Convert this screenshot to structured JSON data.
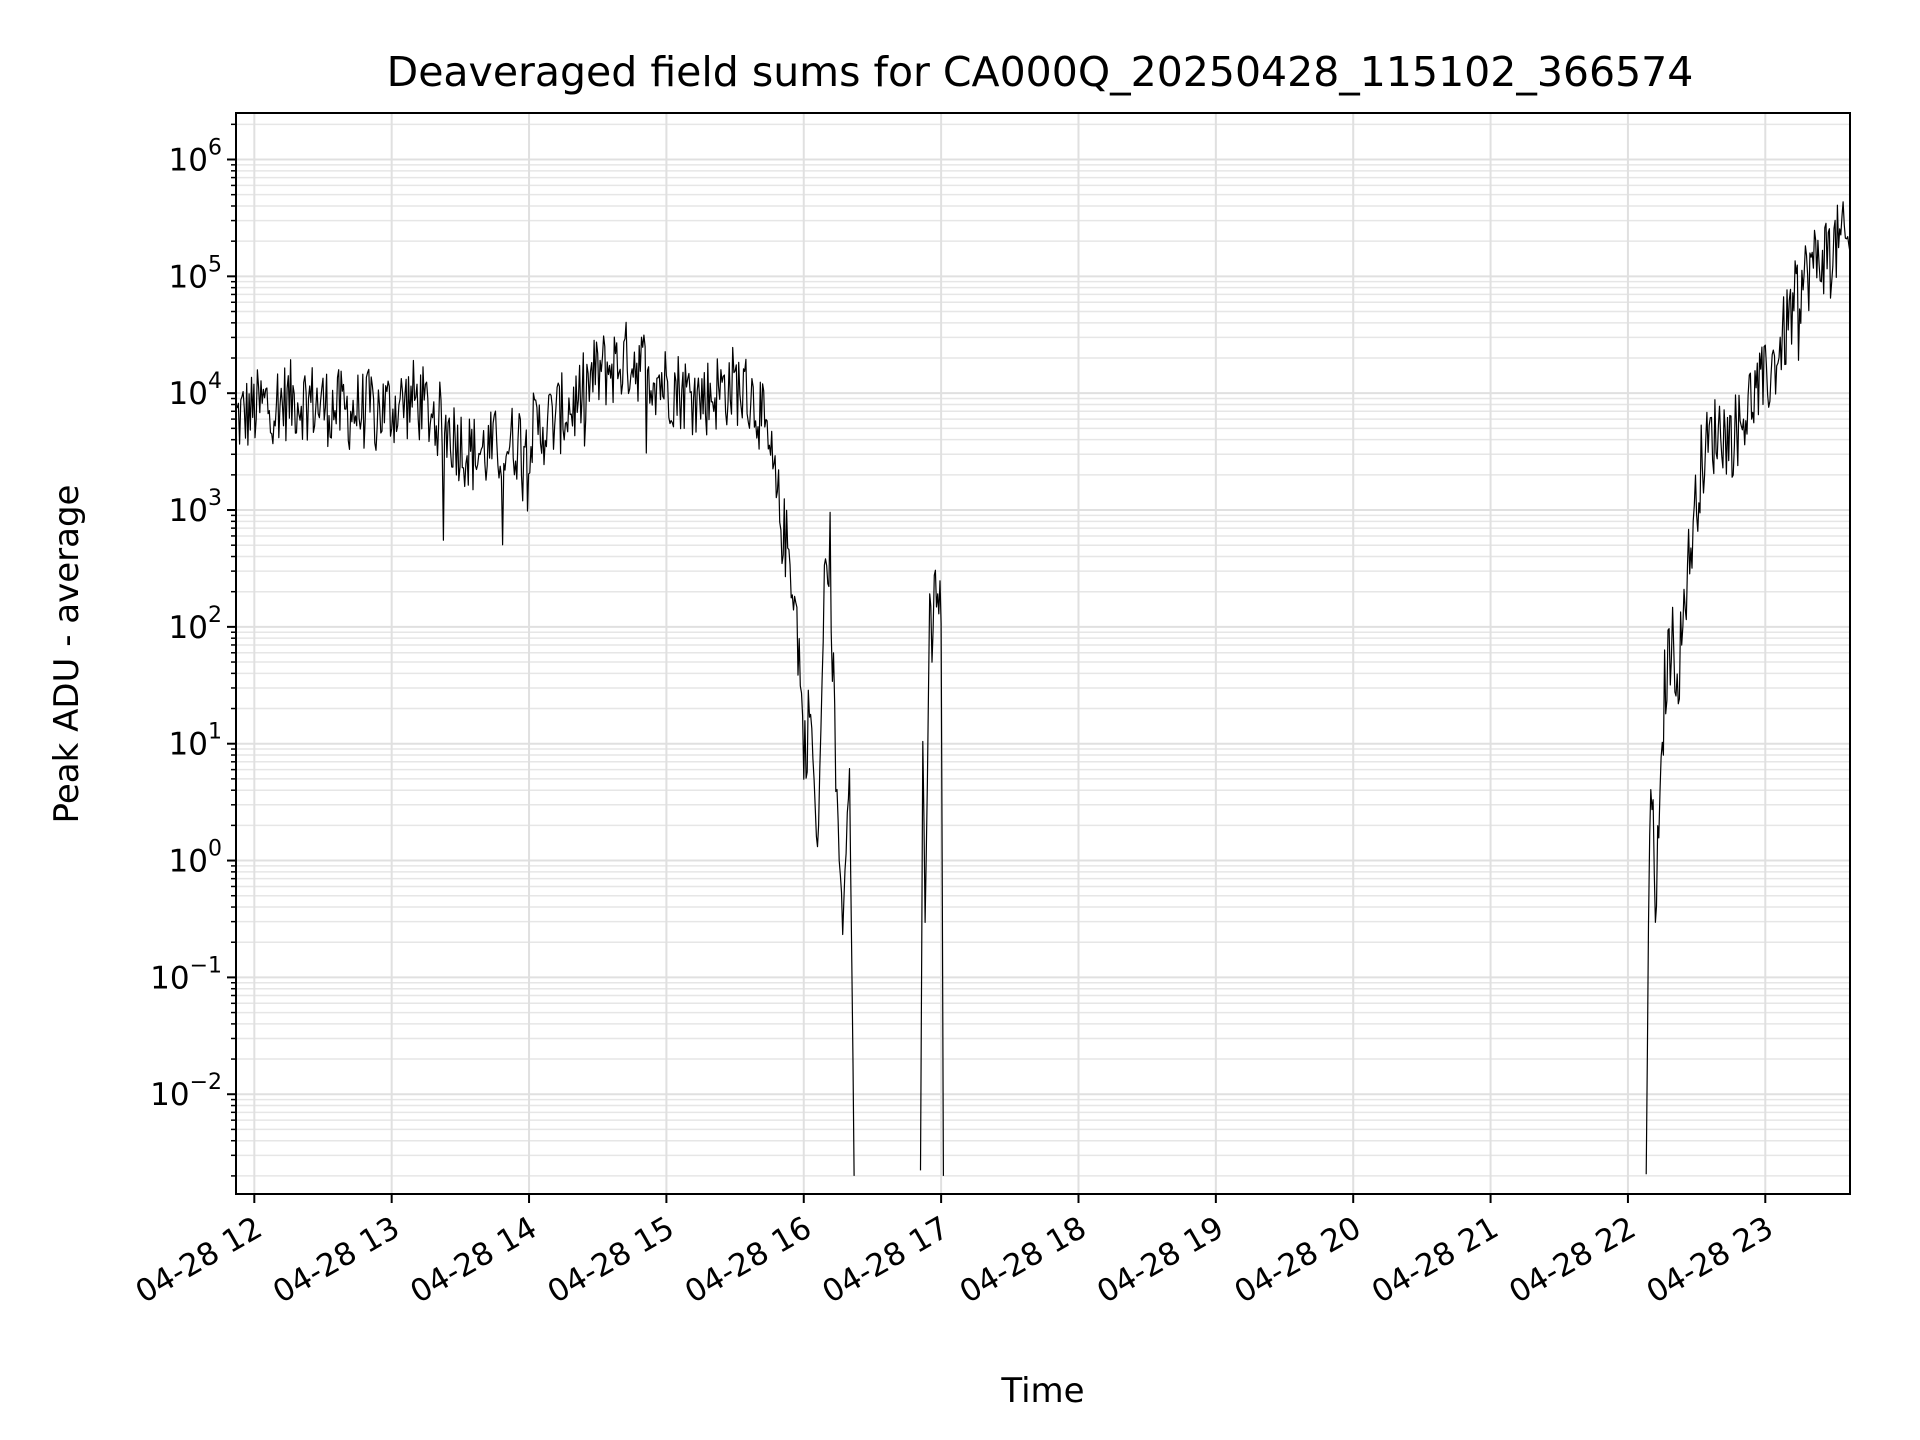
{
  "chart_data": {
    "type": "line",
    "title": "Deaveraged field sums for CA000Q_20250428_115102_366574",
    "xlabel": "Time",
    "ylabel": "Peak ADU - average",
    "yscale": "log",
    "grid": true,
    "xlim": [
      "2025-04-28 11:52",
      "2025-04-28 23:37"
    ],
    "ylim": [
      0.0014,
      2500000.0
    ],
    "x_ticks": [
      "04-28 12",
      "04-28 13",
      "04-28 14",
      "04-28 15",
      "04-28 16",
      "04-28 17",
      "04-28 18",
      "04-28 19",
      "04-28 20",
      "04-28 21",
      "04-28 22",
      "04-28 23"
    ],
    "y_ticks": [
      {
        "value": 0.01,
        "base": "10",
        "exp": "−2"
      },
      {
        "value": 0.1,
        "base": "10",
        "exp": "−1"
      },
      {
        "value": 1,
        "base": "10",
        "exp": "0"
      },
      {
        "value": 10,
        "base": "10",
        "exp": "1"
      },
      {
        "value": 100,
        "base": "10",
        "exp": "2"
      },
      {
        "value": 1000,
        "base": "10",
        "exp": "3"
      },
      {
        "value": 10000,
        "base": "10",
        "exp": "4"
      },
      {
        "value": 100000,
        "base": "10",
        "exp": "5"
      },
      {
        "value": 1000000,
        "base": "10",
        "exp": "6"
      }
    ],
    "series": [
      {
        "color": "#000000",
        "segments": [
          {
            "x": [
              "2025-04-28 11:52",
              "2025-04-28 12:05",
              "2025-04-28 12:20",
              "2025-04-28 12:40",
              "2025-04-28 13:00",
              "2025-04-28 13:10",
              "2025-04-28 13:20",
              "2025-04-28 13:35",
              "2025-04-28 13:50",
              "2025-04-28 14:05",
              "2025-04-28 14:20",
              "2025-04-28 14:30",
              "2025-04-28 14:45",
              "2025-04-28 15:00",
              "2025-04-28 15:15",
              "2025-04-28 15:30",
              "2025-04-28 15:40",
              "2025-04-28 15:45",
              "2025-04-28 15:50",
              "2025-04-28 15:55",
              "2025-04-28 15:58",
              "2025-04-28 16:00",
              "2025-04-28 16:03",
              "2025-04-28 16:06",
              "2025-04-28 16:09",
              "2025-04-28 16:12",
              "2025-04-28 16:14",
              "2025-04-28 16:17",
              "2025-04-28 16:20",
              "2025-04-28 16:22"
            ],
            "y": [
              6000,
              8000,
              9000,
              7000,
              7500,
              9000,
              6000,
              3000,
              3500,
              5000,
              8000,
              15000,
              20000,
              12000,
              9000,
              12000,
              8000,
              3000,
              800,
              300,
              60,
              8,
              20,
              1,
              200,
              600,
              5,
              0.3,
              8,
              0.002
            ]
          },
          {
            "x": [
              "2025-04-28 16:51",
              "2025-04-28 16:52",
              "2025-04-28 16:53",
              "2025-04-28 16:55",
              "2025-04-28 16:56",
              "2025-04-28 16:57",
              "2025-04-28 16:58",
              "2025-04-28 16:59",
              "2025-04-28 17:00",
              "2025-04-28 17:01"
            ],
            "y": [
              0.002,
              12,
              0.3,
              90,
              70,
              150,
              250,
              180,
              100,
              0.002
            ]
          },
          {
            "x": [
              "2025-04-28 22:08",
              "2025-04-28 22:09",
              "2025-04-28 22:10",
              "2025-04-28 22:12",
              "2025-04-28 22:14",
              "2025-04-28 22:16",
              "2025-04-28 22:19",
              "2025-04-28 22:22",
              "2025-04-28 22:25",
              "2025-04-28 22:28",
              "2025-04-28 22:32",
              "2025-04-28 22:36",
              "2025-04-28 22:40",
              "2025-04-28 22:45",
              "2025-04-28 22:50",
              "2025-04-28 22:55",
              "2025-04-28 23:00",
              "2025-04-28 23:05",
              "2025-04-28 23:10",
              "2025-04-28 23:15",
              "2025-04-28 23:20",
              "2025-04-28 23:25",
              "2025-04-28 23:30",
              "2025-04-28 23:35",
              "2025-04-28 23:37"
            ],
            "y": [
              0.002,
              0.3,
              5,
              0.5,
              2,
              30,
              80,
              40,
              200,
              600,
              2500,
              4000,
              5000,
              4000,
              6000,
              10000,
              12000,
              20000,
              40000,
              80000,
              120000,
              150000,
              180000,
              200000,
              160000
            ]
          }
        ]
      }
    ]
  }
}
